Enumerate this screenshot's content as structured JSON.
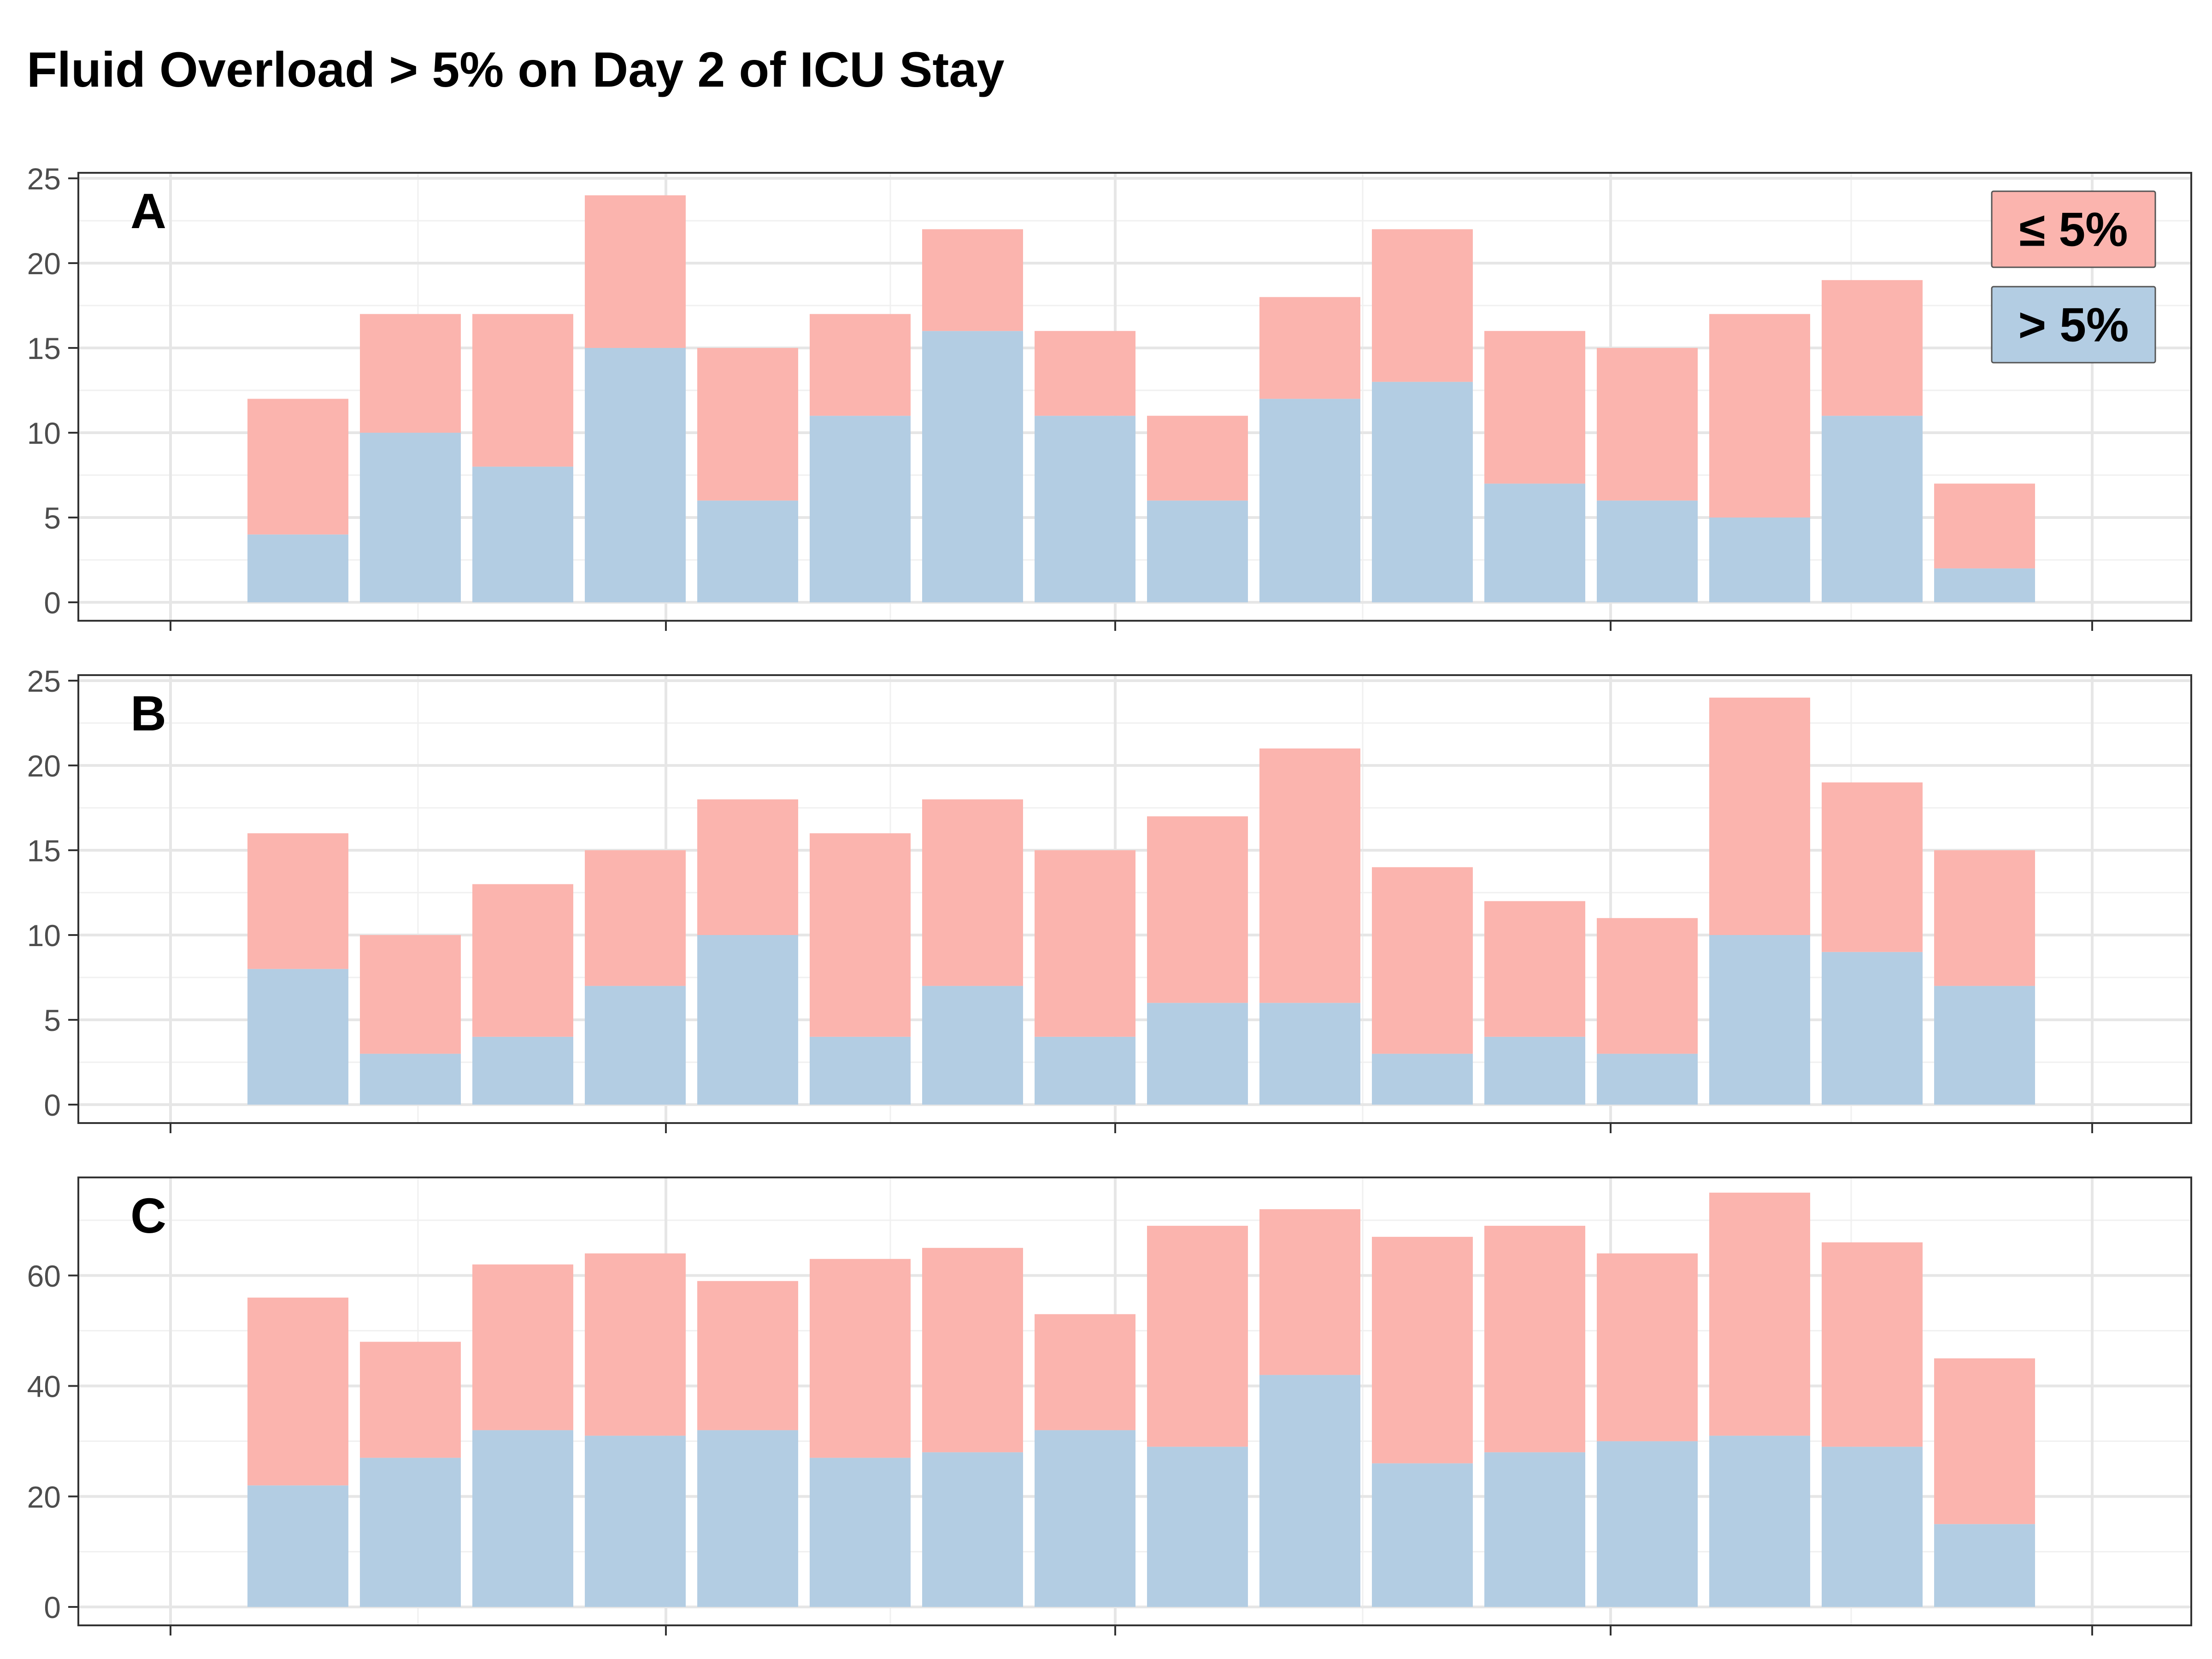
{
  "chart_data": {
    "type": "bar",
    "stacked": true,
    "title": "Fluid Overload > 5% on Day 2 of ICU Stay",
    "legend": {
      "placement": "top-right",
      "entries": [
        {
          "label": "≤ 5%",
          "color": "#FBB4AE"
        },
        {
          "label": "> 5%",
          "color": "#B3CDE3"
        }
      ]
    },
    "x_tick_labels_visible": false,
    "grid": true,
    "panels": [
      {
        "label": "A",
        "ylim": [
          0,
          25
        ],
        "yticks": [
          0,
          5,
          10,
          15,
          20,
          25
        ],
        "series": [
          {
            "name": "> 5%",
            "values": [
              4,
              10,
              8,
              15,
              6,
              11,
              16,
              11,
              6,
              12,
              13,
              7,
              6,
              5,
              11,
              2
            ]
          },
          {
            "name": "≤ 5%",
            "values": [
              8,
              7,
              9,
              9,
              9,
              6,
              6,
              5,
              5,
              6,
              9,
              9,
              9,
              12,
              8,
              5
            ]
          }
        ]
      },
      {
        "label": "B",
        "ylim": [
          0,
          25
        ],
        "yticks": [
          0,
          5,
          10,
          15,
          20,
          25
        ],
        "series": [
          {
            "name": "> 5%",
            "values": [
              8,
              3,
              4,
              7,
              10,
              4,
              7,
              4,
              6,
              6,
              3,
              4,
              3,
              10,
              9,
              7
            ]
          },
          {
            "name": "≤ 5%",
            "values": [
              8,
              7,
              9,
              8,
              8,
              12,
              11,
              11,
              11,
              15,
              11,
              8,
              8,
              14,
              10,
              8
            ]
          }
        ]
      },
      {
        "label": "C",
        "ylim": [
          0,
          75
        ],
        "yticks": [
          0,
          20,
          40,
          60
        ],
        "series": [
          {
            "name": "> 5%",
            "values": [
              22,
              27,
              32,
              31,
              32,
              27,
              28,
              32,
              29,
              42,
              26,
              28,
              30,
              31,
              29,
              15
            ]
          },
          {
            "name": "≤ 5%",
            "values": [
              34,
              21,
              30,
              33,
              27,
              36,
              37,
              21,
              40,
              30,
              41,
              41,
              34,
              44,
              37,
              30
            ]
          }
        ]
      }
    ]
  }
}
